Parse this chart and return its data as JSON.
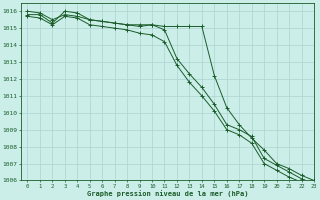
{
  "title": "Graphe pression niveau de la mer (hPa)",
  "background_color": "#cceee8",
  "grid_color": "#aad4ce",
  "line_color": "#1a5c2a",
  "text_color": "#1a5c2a",
  "xlim": [
    -0.5,
    23
  ],
  "ylim": [
    1006,
    1016.5
  ],
  "xlabel_ticks": [
    0,
    1,
    2,
    3,
    4,
    5,
    6,
    7,
    8,
    9,
    10,
    11,
    12,
    13,
    14,
    15,
    16,
    17,
    18,
    19,
    20,
    21,
    22,
    23
  ],
  "series": [
    [
      1016.0,
      1015.9,
      1015.5,
      1015.8,
      1015.7,
      1015.5,
      1015.4,
      1015.3,
      1015.2,
      1015.2,
      1015.2,
      1014.9,
      1013.2,
      1012.3,
      1011.5,
      1010.5,
      1009.3,
      1009.0,
      1008.6,
      1007.3,
      1006.9,
      1006.5,
      1006.1,
      1005.8
    ],
    [
      1015.7,
      1015.6,
      1015.2,
      1015.7,
      1015.6,
      1015.2,
      1015.1,
      1015.0,
      1014.9,
      1014.7,
      1014.6,
      1014.2,
      1012.8,
      1011.8,
      1011.0,
      1010.1,
      1009.0,
      1008.7,
      1008.2,
      1007.0,
      1006.6,
      1006.2,
      1005.9,
      1005.6
    ],
    [
      1015.8,
      1015.8,
      1015.3,
      1016.0,
      1015.9,
      1015.5,
      1015.4,
      1015.3,
      1015.2,
      1015.1,
      1015.2,
      1015.1,
      1015.1,
      1015.1,
      1015.1,
      1012.2,
      1010.3,
      1009.3,
      1008.5,
      1007.8,
      1007.0,
      1006.7,
      1006.3,
      1006.0
    ]
  ]
}
